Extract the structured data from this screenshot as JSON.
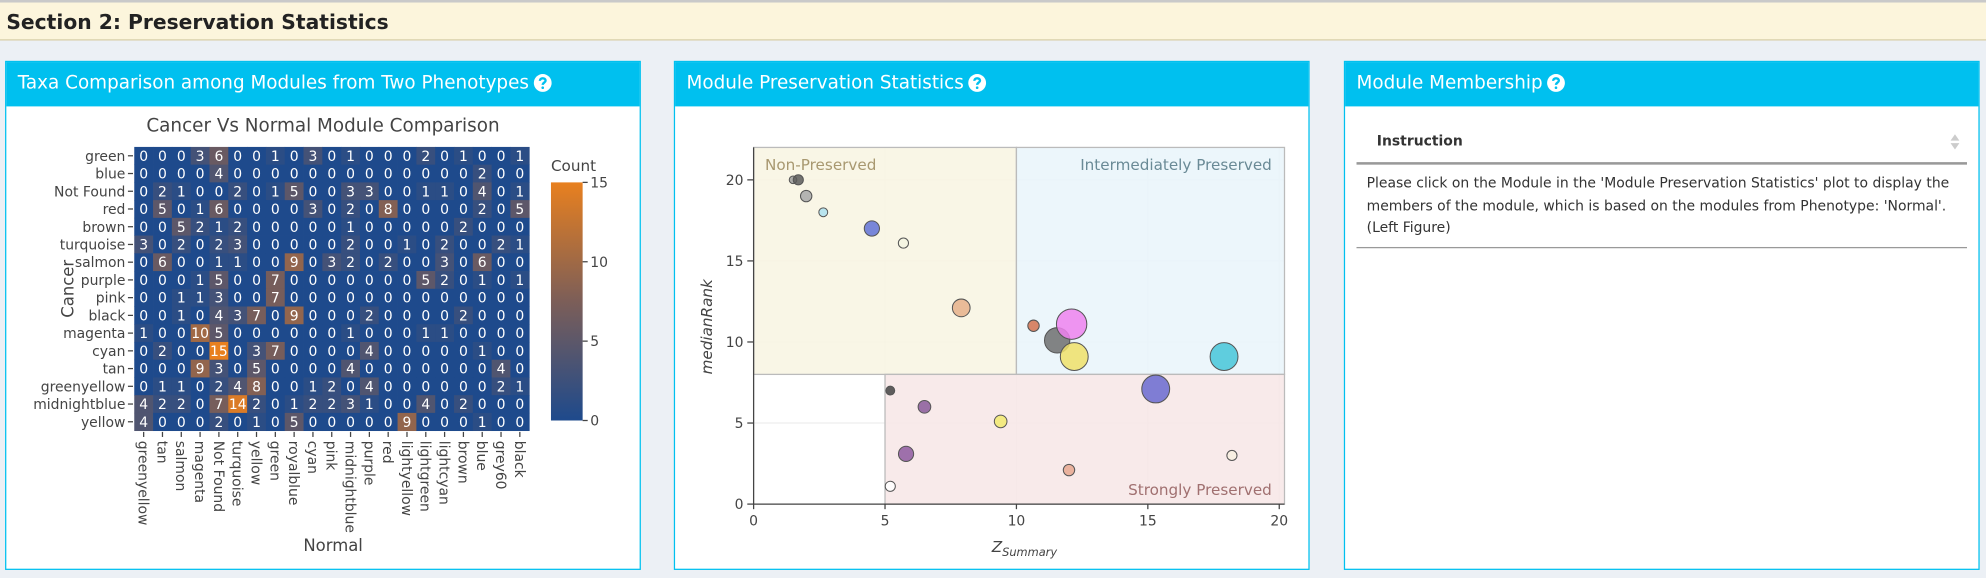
{
  "section_title": "Section 2: Preservation Statistics",
  "panels": [
    {
      "title": "Taxa Comparison among Modules from Two Phenotypes"
    },
    {
      "title": "Module Preservation Statistics"
    },
    {
      "title": "Module Membership"
    }
  ],
  "membership_table": {
    "header": "Instruction",
    "text": "Please click on the Module in the 'Module Preservation Statistics' plot to display the members of the module, which is based on the modules from Phenotype: 'Normal'. (Left Figure)"
  },
  "chart_data": [
    {
      "type": "heatmap",
      "title": "Cancer Vs Normal Module Comparison",
      "x_label": "Normal",
      "y_label": "Cancer",
      "x": [
        "greenyellow",
        "tan",
        "salmon",
        "magenta",
        "Not Found",
        "turquoise",
        "yellow",
        "green",
        "royalblue",
        "cyan",
        "pink",
        "midnightblue",
        "purple",
        "red",
        "lightyellow",
        "lightgreen",
        "lightcyan",
        "brown",
        "blue",
        "grey60",
        "black"
      ],
      "y": [
        "green",
        "blue",
        "Not Found",
        "red",
        "brown",
        "turquoise",
        "salmon",
        "purple",
        "pink",
        "black",
        "magenta",
        "cyan",
        "tan",
        "greenyellow",
        "midnightblue",
        "yellow"
      ],
      "z": [
        [
          0,
          0,
          0,
          3,
          6,
          0,
          0,
          1,
          0,
          3,
          0,
          1,
          0,
          0,
          0,
          2,
          0,
          1,
          0,
          0,
          1
        ],
        [
          0,
          0,
          0,
          0,
          4,
          0,
          0,
          0,
          0,
          0,
          0,
          0,
          0,
          0,
          0,
          0,
          0,
          0,
          2,
          0,
          0
        ],
        [
          0,
          2,
          1,
          0,
          0,
          2,
          0,
          1,
          5,
          0,
          0,
          3,
          3,
          0,
          0,
          1,
          1,
          0,
          4,
          0,
          1
        ],
        [
          0,
          5,
          0,
          1,
          6,
          0,
          0,
          0,
          0,
          3,
          0,
          2,
          0,
          8,
          0,
          0,
          0,
          0,
          2,
          0,
          5
        ],
        [
          0,
          0,
          5,
          2,
          1,
          2,
          0,
          0,
          0,
          0,
          0,
          1,
          0,
          0,
          0,
          0,
          0,
          2,
          0,
          0,
          0
        ],
        [
          3,
          0,
          2,
          0,
          2,
          3,
          0,
          0,
          0,
          0,
          0,
          2,
          0,
          0,
          1,
          0,
          2,
          0,
          0,
          2,
          1
        ],
        [
          0,
          6,
          0,
          0,
          1,
          1,
          0,
          0,
          9,
          0,
          3,
          2,
          0,
          2,
          0,
          0,
          3,
          0,
          6,
          0,
          0
        ],
        [
          0,
          0,
          0,
          1,
          5,
          0,
          0,
          7,
          0,
          0,
          0,
          0,
          0,
          0,
          0,
          5,
          2,
          0,
          1,
          0,
          1
        ],
        [
          0,
          0,
          1,
          1,
          3,
          0,
          0,
          7,
          0,
          0,
          0,
          0,
          0,
          0,
          0,
          0,
          0,
          0,
          0,
          0,
          0
        ],
        [
          0,
          0,
          1,
          0,
          4,
          3,
          7,
          0,
          9,
          0,
          0,
          0,
          2,
          0,
          0,
          0,
          0,
          2,
          0,
          0,
          0
        ],
        [
          1,
          0,
          0,
          10,
          5,
          0,
          0,
          0,
          0,
          0,
          0,
          1,
          0,
          0,
          0,
          1,
          1,
          0,
          0,
          0,
          0
        ],
        [
          0,
          2,
          0,
          0,
          15,
          0,
          3,
          7,
          0,
          0,
          0,
          0,
          4,
          0,
          0,
          0,
          0,
          0,
          1,
          0,
          0
        ],
        [
          0,
          0,
          0,
          9,
          3,
          0,
          5,
          0,
          0,
          0,
          0,
          4,
          0,
          0,
          0,
          0,
          0,
          0,
          0,
          4,
          0
        ],
        [
          0,
          1,
          1,
          0,
          2,
          4,
          8,
          0,
          0,
          1,
          2,
          0,
          4,
          0,
          0,
          0,
          0,
          0,
          0,
          2,
          1
        ],
        [
          4,
          2,
          2,
          0,
          7,
          14,
          2,
          0,
          1,
          2,
          2,
          3,
          1,
          0,
          0,
          4,
          0,
          2,
          0,
          0,
          0
        ],
        [
          4,
          0,
          0,
          0,
          2,
          0,
          1,
          0,
          5,
          0,
          0,
          0,
          0,
          0,
          9,
          0,
          0,
          0,
          1,
          0,
          0
        ]
      ],
      "colorbar_title": "Count",
      "zlim": [
        0,
        15
      ],
      "zticks": [
        0,
        5,
        10,
        15
      ],
      "colorscale": [
        "#1e4a8c",
        "#7c5e58",
        "#e8801f"
      ]
    },
    {
      "type": "scatter",
      "x_label": "Z",
      "x_label_sub": "Summary",
      "y_label": "medianRank",
      "xlim": [
        0,
        20.2
      ],
      "ylim": [
        0,
        22
      ],
      "xticks": [
        0,
        5,
        10,
        15,
        20
      ],
      "yticks": [
        0,
        5,
        10,
        15,
        20
      ],
      "grid": true,
      "regions": [
        {
          "name": "Non-Preserved",
          "xlim": [
            0,
            10
          ],
          "ylim": [
            8,
            22
          ],
          "color": "#f8f5e2",
          "label_color": "#a89870",
          "label_corner": "top-left"
        },
        {
          "name": "Intermediately Preserved",
          "xlim": [
            10,
            20.2
          ],
          "ylim": [
            8,
            22
          ],
          "color": "#e9f5fa",
          "label_color": "#6a8a96",
          "label_corner": "top-right"
        },
        {
          "name": "Strongly Preserved",
          "xlim": [
            5,
            20.2
          ],
          "ylim": [
            0,
            8
          ],
          "color": "#f7e6e6",
          "label_color": "#a07070",
          "label_corner": "bottom-right"
        }
      ],
      "x": [
        1.5,
        1.7,
        2.0,
        2.65,
        4.5,
        5.7,
        7.9,
        10.65,
        11.55,
        12.1,
        12.2,
        17.9,
        15.3,
        5.2,
        6.5,
        9.4,
        5.8,
        12.0,
        18.2,
        5.2
      ],
      "values": [
        20.0,
        20.0,
        19.0,
        18.0,
        17.0,
        16.1,
        12.1,
        11.0,
        10.1,
        11.1,
        9.1,
        9.1,
        7.1,
        7.0,
        6.0,
        5.1,
        3.1,
        2.1,
        3.0,
        1.1
      ],
      "sizes": [
        3,
        4,
        4.5,
        3.5,
        6,
        4,
        7,
        4.5,
        10,
        12,
        11,
        11,
        11,
        3.5,
        5,
        5,
        6,
        4.5,
        4,
        4
      ],
      "colors": [
        "#9e9e9e",
        "#5a5a5a",
        "#a8a8a8",
        "#aee0ee",
        "#6272d6",
        "#f4f4e0",
        "#e6b08a",
        "#d4724f",
        "#6e6e6e",
        "#ee82ee",
        "#f0e068",
        "#46c6d8",
        "#6a6ad0",
        "#444444",
        "#8a5a9a",
        "#f2ea70",
        "#8e5aa0",
        "#e8a890",
        "#f8f0e0",
        "#ffffff"
      ]
    }
  ]
}
